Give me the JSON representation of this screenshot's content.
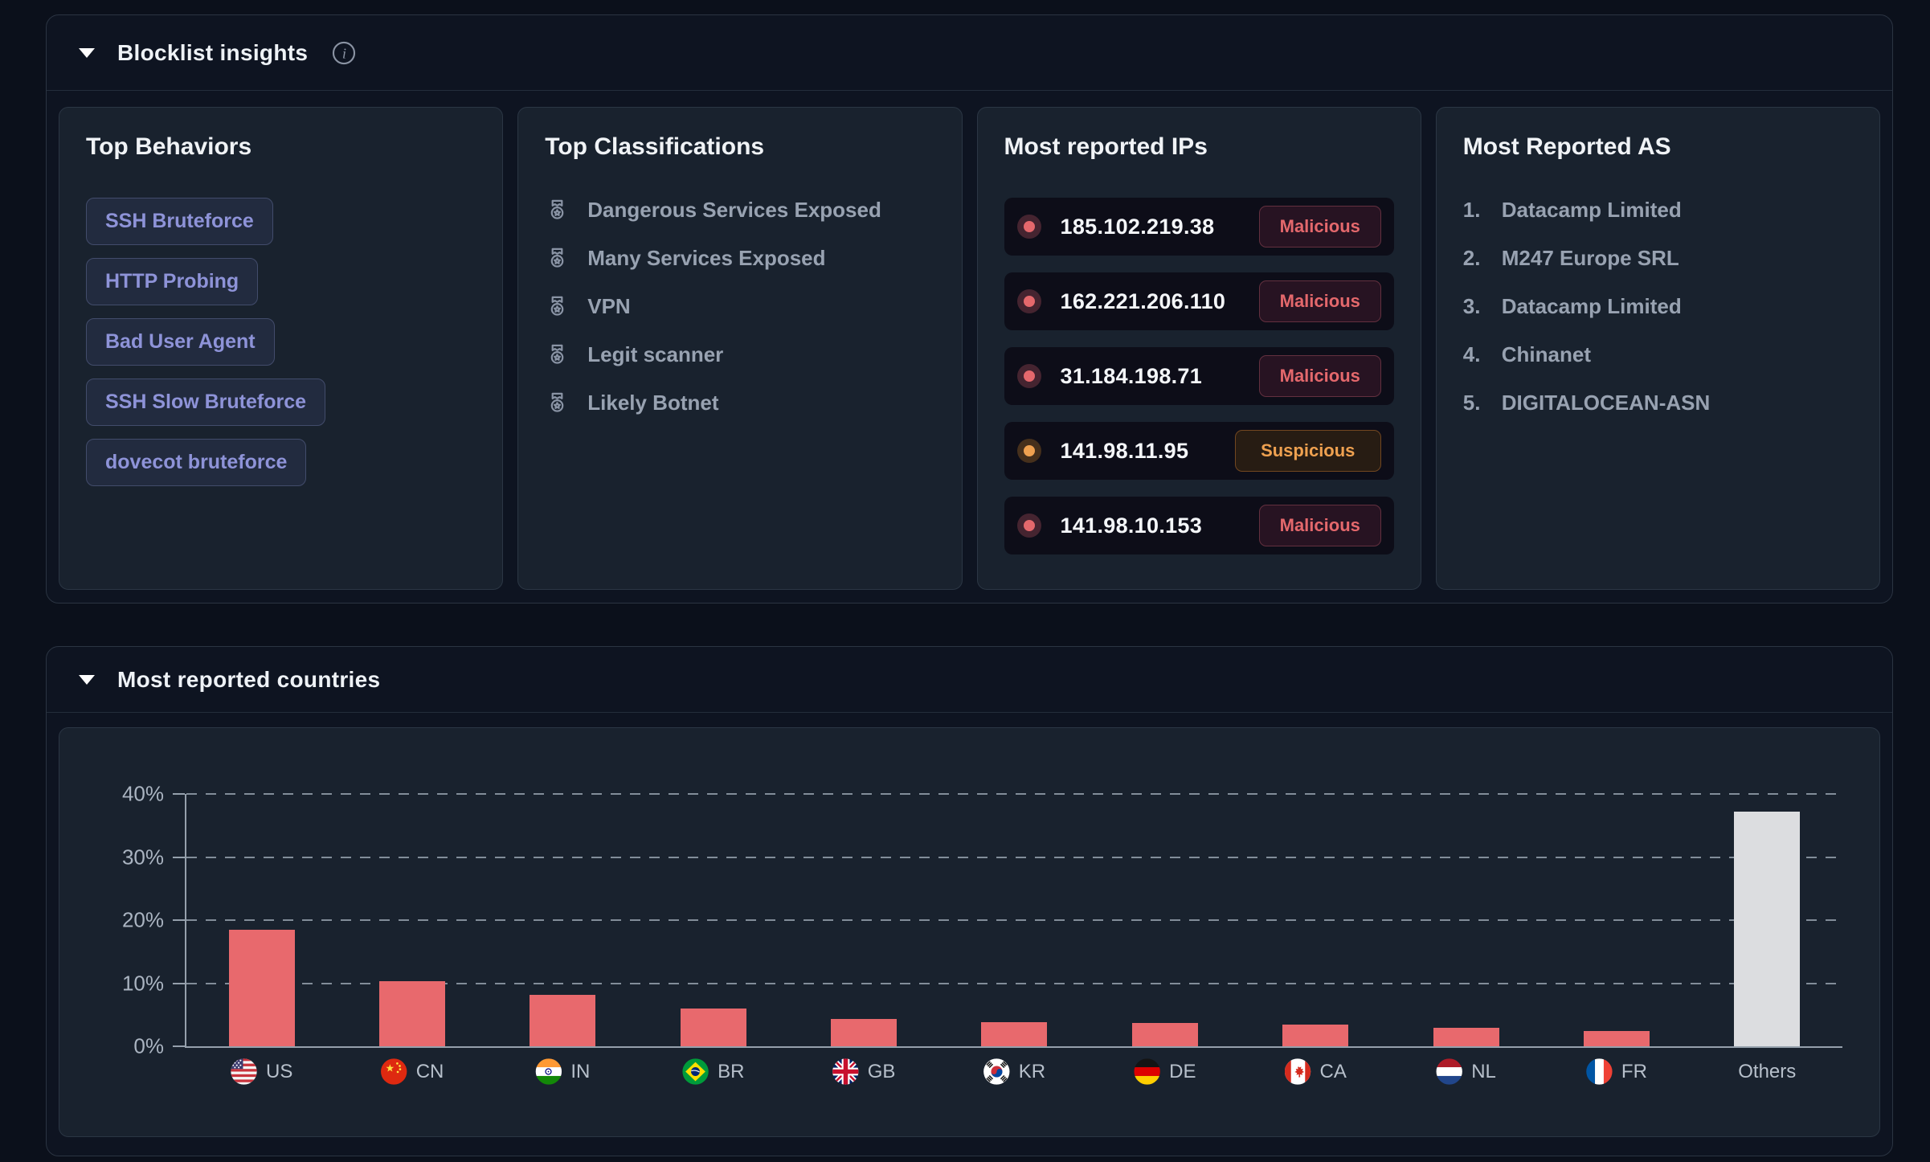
{
  "blocklist": {
    "title": "Blocklist insights",
    "behaviors": {
      "title": "Top Behaviors",
      "chips": [
        "SSH Bruteforce",
        "HTTP Probing",
        "Bad User Agent",
        "SSH Slow Bruteforce",
        "dovecot bruteforce"
      ]
    },
    "classifications": {
      "title": "Top Classifications",
      "icon": "medal-icon",
      "items": [
        "Dangerous Services Exposed",
        "Many Services Exposed",
        "VPN",
        "Legit scanner",
        "Likely Botnet"
      ]
    },
    "reported_ips": {
      "title": "Most reported IPs",
      "rows": [
        {
          "ip": "185.102.219.38",
          "status": "Malicious"
        },
        {
          "ip": "162.221.206.110",
          "status": "Malicious"
        },
        {
          "ip": "31.184.198.71",
          "status": "Malicious"
        },
        {
          "ip": "141.98.11.95",
          "status": "Suspicious"
        },
        {
          "ip": "141.98.10.153",
          "status": "Malicious"
        }
      ]
    },
    "reported_as": {
      "title": "Most Reported AS",
      "items": [
        {
          "rank": "1.",
          "name": "Datacamp Limited"
        },
        {
          "rank": "2.",
          "name": "M247 Europe SRL"
        },
        {
          "rank": "3.",
          "name": "Datacamp Limited"
        },
        {
          "rank": "4.",
          "name": "Chinanet"
        },
        {
          "rank": "5.",
          "name": "DIGITALOCEAN-ASN"
        }
      ]
    }
  },
  "countries_section": {
    "title": "Most reported countries"
  },
  "chart_data": {
    "type": "bar",
    "title": "Most reported countries",
    "categories": [
      "US",
      "CN",
      "IN",
      "BR",
      "GB",
      "KR",
      "DE",
      "CA",
      "NL",
      "FR",
      "Others"
    ],
    "values": [
      18.5,
      10.3,
      8.1,
      6.0,
      4.3,
      3.8,
      3.7,
      3.4,
      2.9,
      2.4,
      37.2
    ],
    "unit": "%",
    "xlabel": "",
    "ylabel": "",
    "ylim": [
      0,
      40
    ],
    "yticks": [
      "0%",
      "10%",
      "20%",
      "30%",
      "40%"
    ],
    "grid": "horizontal-dashed",
    "legend": "none",
    "bar_color": "#e8696d",
    "others_bar_color": "#dcdde0",
    "flag_icons": [
      "us-flag-icon",
      "cn-flag-icon",
      "in-flag-icon",
      "br-flag-icon",
      "gb-flag-icon",
      "kr-flag-icon",
      "de-flag-icon",
      "ca-flag-icon",
      "nl-flag-icon",
      "fr-flag-icon"
    ]
  },
  "colors": {
    "page_bg": "#0b101b",
    "panel_bg": "#19222e",
    "ip_row_bg": "#0d0d18",
    "malicious": "#e4686c",
    "suspicious": "#efa150",
    "chip_text": "#8e93d8",
    "bar": "#e8696d",
    "others_bar": "#dcdde0"
  }
}
